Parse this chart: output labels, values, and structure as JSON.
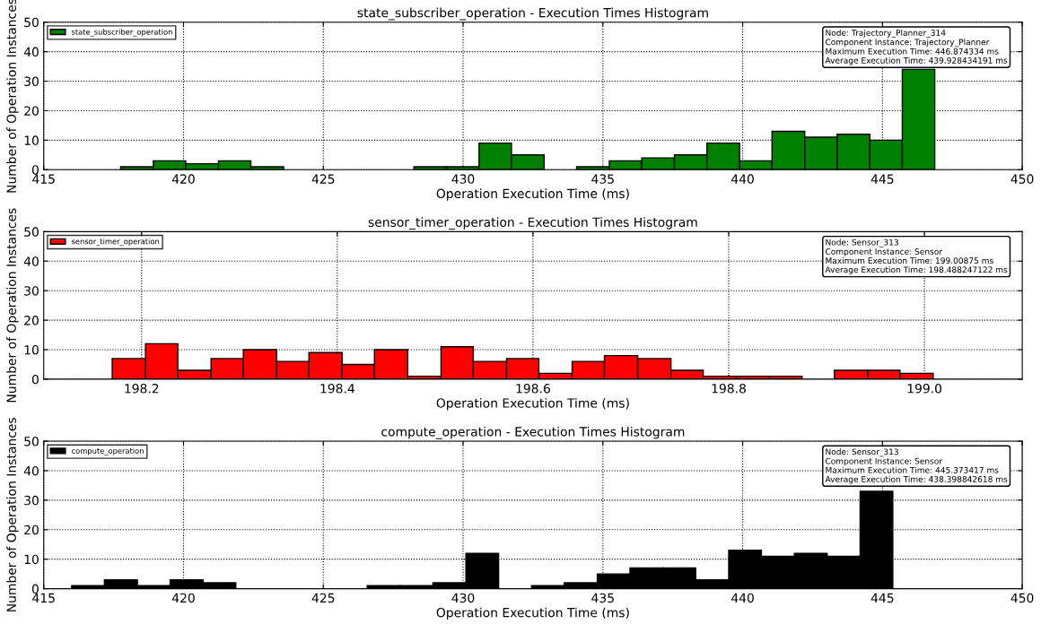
{
  "chart_data": [
    {
      "type": "histogram",
      "title": "state_subscriber_operation - Execution Times Histogram",
      "xlabel": "Operation Execution Time (ms)",
      "ylabel": "Number of Operation Instances",
      "bins": [
        417.75,
        418.92,
        420.08,
        421.25,
        422.41,
        423.58,
        424.74,
        425.91,
        427.07,
        428.24,
        429.4,
        430.57,
        431.73,
        432.9,
        434.06,
        435.23,
        436.39,
        437.56,
        438.72,
        439.89,
        441.05,
        442.22,
        443.38,
        444.55,
        445.71,
        446.87
      ],
      "series": [
        {
          "name": "state_subscriber_operation",
          "color": "#008000",
          "values": [
            1,
            3,
            2,
            3,
            1,
            0,
            0,
            0,
            0,
            1,
            1,
            9,
            5,
            0,
            1,
            3,
            4,
            5,
            9,
            3,
            13,
            11,
            12,
            10,
            34
          ]
        }
      ],
      "xlim": [
        415,
        450
      ],
      "xticks": [
        415,
        420,
        425,
        430,
        435,
        440,
        445,
        450
      ],
      "ylim": [
        0,
        50
      ],
      "yticks": [
        0,
        10,
        20,
        30,
        40,
        50
      ],
      "grid": true,
      "legend": "top left",
      "annotations": [
        "Node: Trajectory_Planner_314\nComponent Instance: Trajectory_Planner\nMaximum Execution Time: 446.874334 ms\nAverage Execution Time: 439.928434191 ms"
      ]
    },
    {
      "type": "histogram",
      "title": "sensor_timer_operation - Execution Times Histogram",
      "xlabel": "Operation Execution Time (ms)",
      "ylabel": "Number of Operation Instances",
      "bins": [
        198.17,
        198.204,
        198.237,
        198.271,
        198.304,
        198.338,
        198.371,
        198.405,
        198.438,
        198.472,
        198.506,
        198.539,
        198.573,
        198.606,
        198.64,
        198.673,
        198.707,
        198.741,
        198.774,
        198.808,
        198.841,
        198.875,
        198.908,
        198.942,
        198.975,
        199.009
      ],
      "series": [
        {
          "name": "sensor_timer_operation",
          "color": "#ff0000",
          "values": [
            7,
            12,
            3,
            7,
            10,
            6,
            9,
            5,
            10,
            1,
            11,
            6,
            7,
            2,
            6,
            8,
            7,
            3,
            1,
            1,
            1,
            0,
            3,
            3,
            2
          ]
        }
      ],
      "xlim": [
        198.1,
        199.1
      ],
      "xticks": [
        {
          "value": 198.2,
          "label": "198.2"
        },
        {
          "value": 198.4,
          "label": "198.4"
        },
        {
          "value": 198.6,
          "label": "198.6"
        },
        {
          "value": 198.8,
          "label": "198.8"
        },
        {
          "value": 199.0,
          "label": "199.0"
        }
      ],
      "ylim": [
        0,
        50
      ],
      "yticks": [
        0,
        10,
        20,
        30,
        40,
        50
      ],
      "grid": true,
      "legend": "top left",
      "annotations": [
        "Node: Sensor_313\nComponent Instance: Sensor\nMaximum Execution Time: 199.00875 ms\nAverage Execution Time: 198.488247122 ms"
      ]
    },
    {
      "type": "histogram",
      "title": "compute_operation - Execution Times Histogram",
      "xlabel": "Operation Execution Time (ms)",
      "ylabel": "Number of Operation Instances",
      "bins": [
        416.0,
        417.17,
        418.35,
        419.52,
        420.7,
        421.87,
        423.05,
        424.22,
        425.4,
        426.57,
        427.75,
        428.92,
        430.1,
        431.27,
        432.45,
        433.62,
        434.8,
        435.97,
        437.15,
        438.32,
        439.5,
        440.67,
        441.85,
        443.02,
        444.2,
        445.37
      ],
      "series": [
        {
          "name": "compute_operation",
          "color": "#000000",
          "values": [
            1,
            3,
            1,
            3,
            2,
            0,
            0,
            0,
            0,
            1,
            1,
            2,
            12,
            0,
            1,
            2,
            5,
            7,
            7,
            3,
            13,
            11,
            12,
            11,
            33
          ]
        }
      ],
      "xlim": [
        415,
        450
      ],
      "xticks": [
        415,
        420,
        425,
        430,
        435,
        440,
        445,
        450
      ],
      "ylim": [
        0,
        50
      ],
      "yticks": [
        0,
        10,
        20,
        30,
        40,
        50
      ],
      "grid": true,
      "legend": "top left",
      "annotations": [
        "Node: Sensor_313\nComponent Instance: Sensor\nMaximum Execution Time: 445.373417 ms\nAverage Execution Time: 438.398842618 ms"
      ]
    }
  ]
}
